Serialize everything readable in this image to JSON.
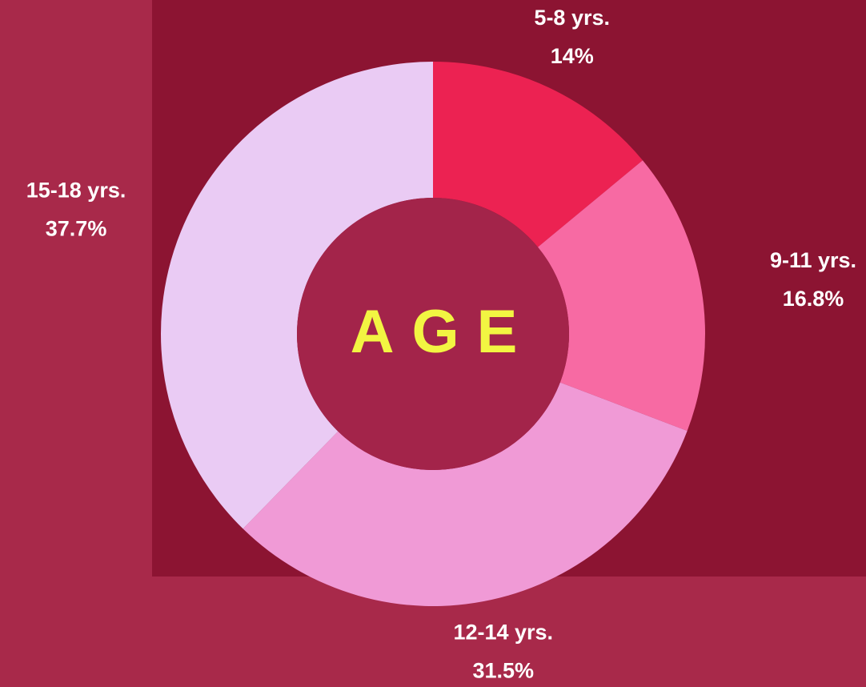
{
  "chart_data": {
    "type": "donut",
    "center_label": "AGE",
    "categories": [
      "5-8 yrs.",
      "9-11 yrs.",
      "12-14 yrs.",
      "15-18 yrs."
    ],
    "values": [
      14,
      16.8,
      31.5,
      37.7
    ],
    "value_labels": [
      "14%",
      "16.8%",
      "31.5%",
      "37.7%"
    ],
    "colors": [
      "#ec2252",
      "#f76aa3",
      "#f09ad6",
      "#eacbf4"
    ]
  }
}
